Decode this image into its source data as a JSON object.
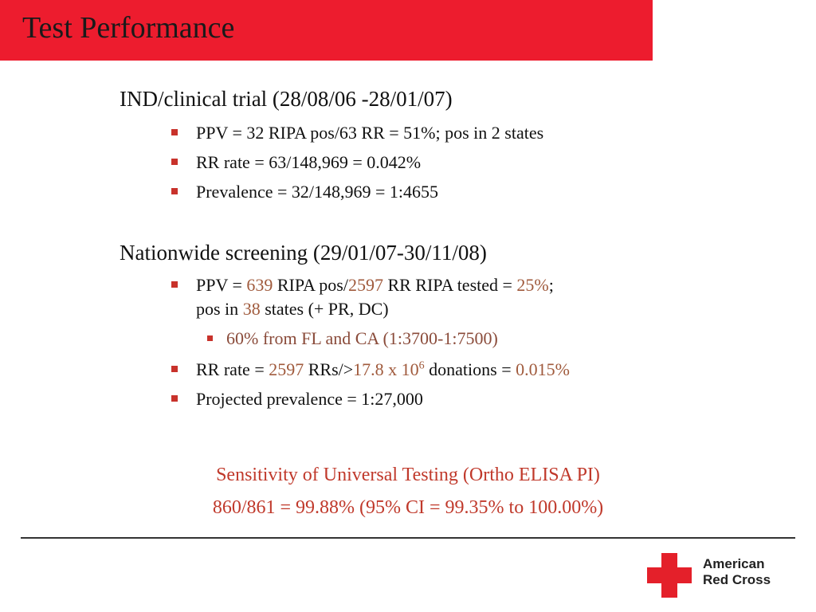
{
  "title": "Test Performance",
  "section1": {
    "heading": "IND/clinical trial (28/08/06 -28/01/07)",
    "bullets": [
      "PPV = 32 RIPA pos/63 RR = 51%; pos in 2 states",
      "RR rate = 63/148,969 = 0.042%",
      "Prevalence = 32/148,969 = 1:4655"
    ]
  },
  "section2": {
    "heading": "Nationwide screening (29/01/07-30/11/08)",
    "ppv": {
      "prefix": "PPV = ",
      "pos_value": "639",
      "pos_label": "RIPA pos/",
      "rr_value": "2597",
      "rr_label": "RR RIPA tested =",
      "pct": "25%",
      "semi": ";",
      "line2_prefix": "pos in",
      "states_value": "38",
      "line2_suffix": "states (+ PR, DC)"
    },
    "sub_bullet": "60% from FL and CA (1:3700-1:7500)",
    "rr_rate": {
      "prefix": "RR rate = ",
      "rrs_value": "2597",
      "rrs_label": "RRs/>",
      "donations_base": "17.8 x 10",
      "donations_exp": "6",
      "donations_label": "donations =",
      "pct": "0.015%"
    },
    "projected": "Projected prevalence = 1:27,000"
  },
  "summary": {
    "line1": "Sensitivity of Universal Testing (Ortho ELISA PI)",
    "line2": "860/861 = 99.88% (95% CI = 99.35% to 100.00%)"
  },
  "logo": {
    "line1": "American",
    "line2": "Red Cross",
    "icon": "red-cross-icon",
    "color": "#e4202a"
  },
  "colors": {
    "title_bar": "#ed1c2e",
    "summary_text": "#c0392b",
    "bullet_marker": "#c8322b"
  }
}
